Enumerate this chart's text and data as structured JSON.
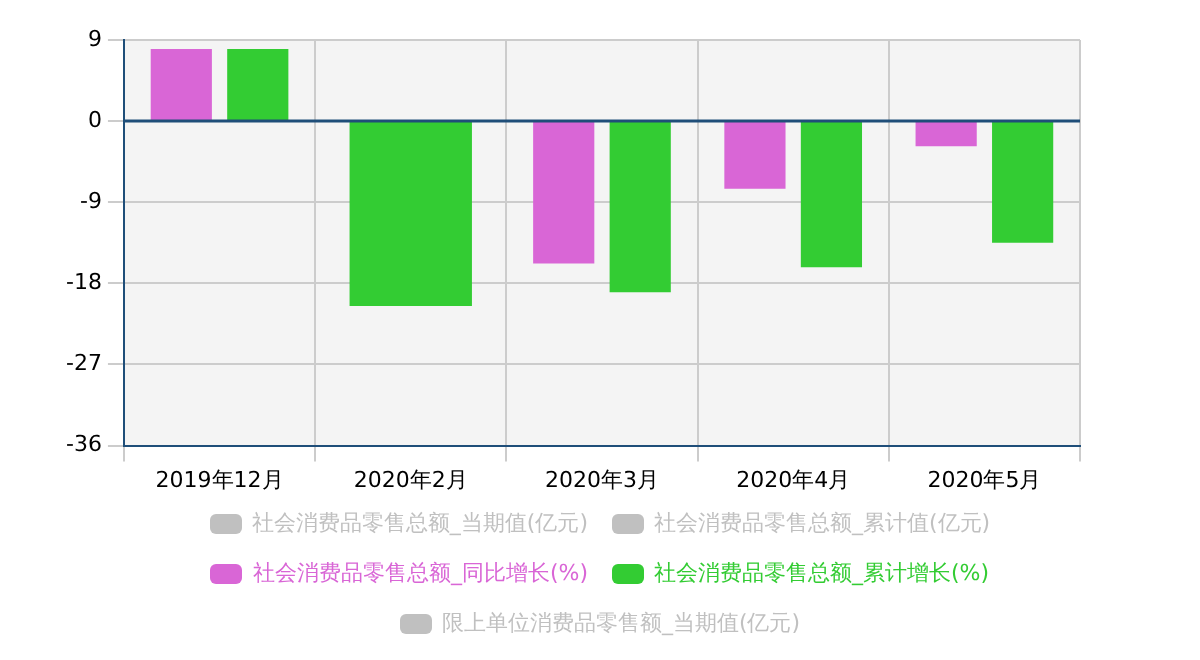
{
  "chart_data": {
    "type": "bar",
    "categories": [
      "2019年12月",
      "2020年2月",
      "2020年3月",
      "2020年4月",
      "2020年5月"
    ],
    "series": [
      {
        "name": "社会消费品零售总额_当期值(亿元)",
        "color": "#c0c0c0",
        "values": [
          null,
          null,
          null,
          null,
          null
        ]
      },
      {
        "name": "社会消费品零售总额_累计值(亿元)",
        "color": "#c0c0c0",
        "values": [
          null,
          null,
          null,
          null,
          null
        ]
      },
      {
        "name": "社会消费品零售总额_同比增长(%)",
        "color": "#d966d6",
        "values": [
          8.0,
          null,
          -15.8,
          -7.5,
          -2.8
        ]
      },
      {
        "name": "社会消费品零售总额_累计增长(%)",
        "color": "#33cc33",
        "values": [
          8.0,
          -20.5,
          -19.0,
          -16.2,
          -13.5
        ]
      },
      {
        "name": "限上单位消费品零售额_当期值(亿元)",
        "color": "#c0c0c0",
        "values": [
          null,
          null,
          null,
          null,
          null
        ]
      }
    ],
    "ylim": [
      -36,
      9
    ],
    "yticks": [
      -36,
      -27,
      -18,
      -9,
      0,
      9
    ],
    "ref_lines": [
      {
        "axis": "y",
        "value": 0,
        "color": "#1f4e79"
      }
    ],
    "grid": true,
    "legend": "bottom"
  }
}
